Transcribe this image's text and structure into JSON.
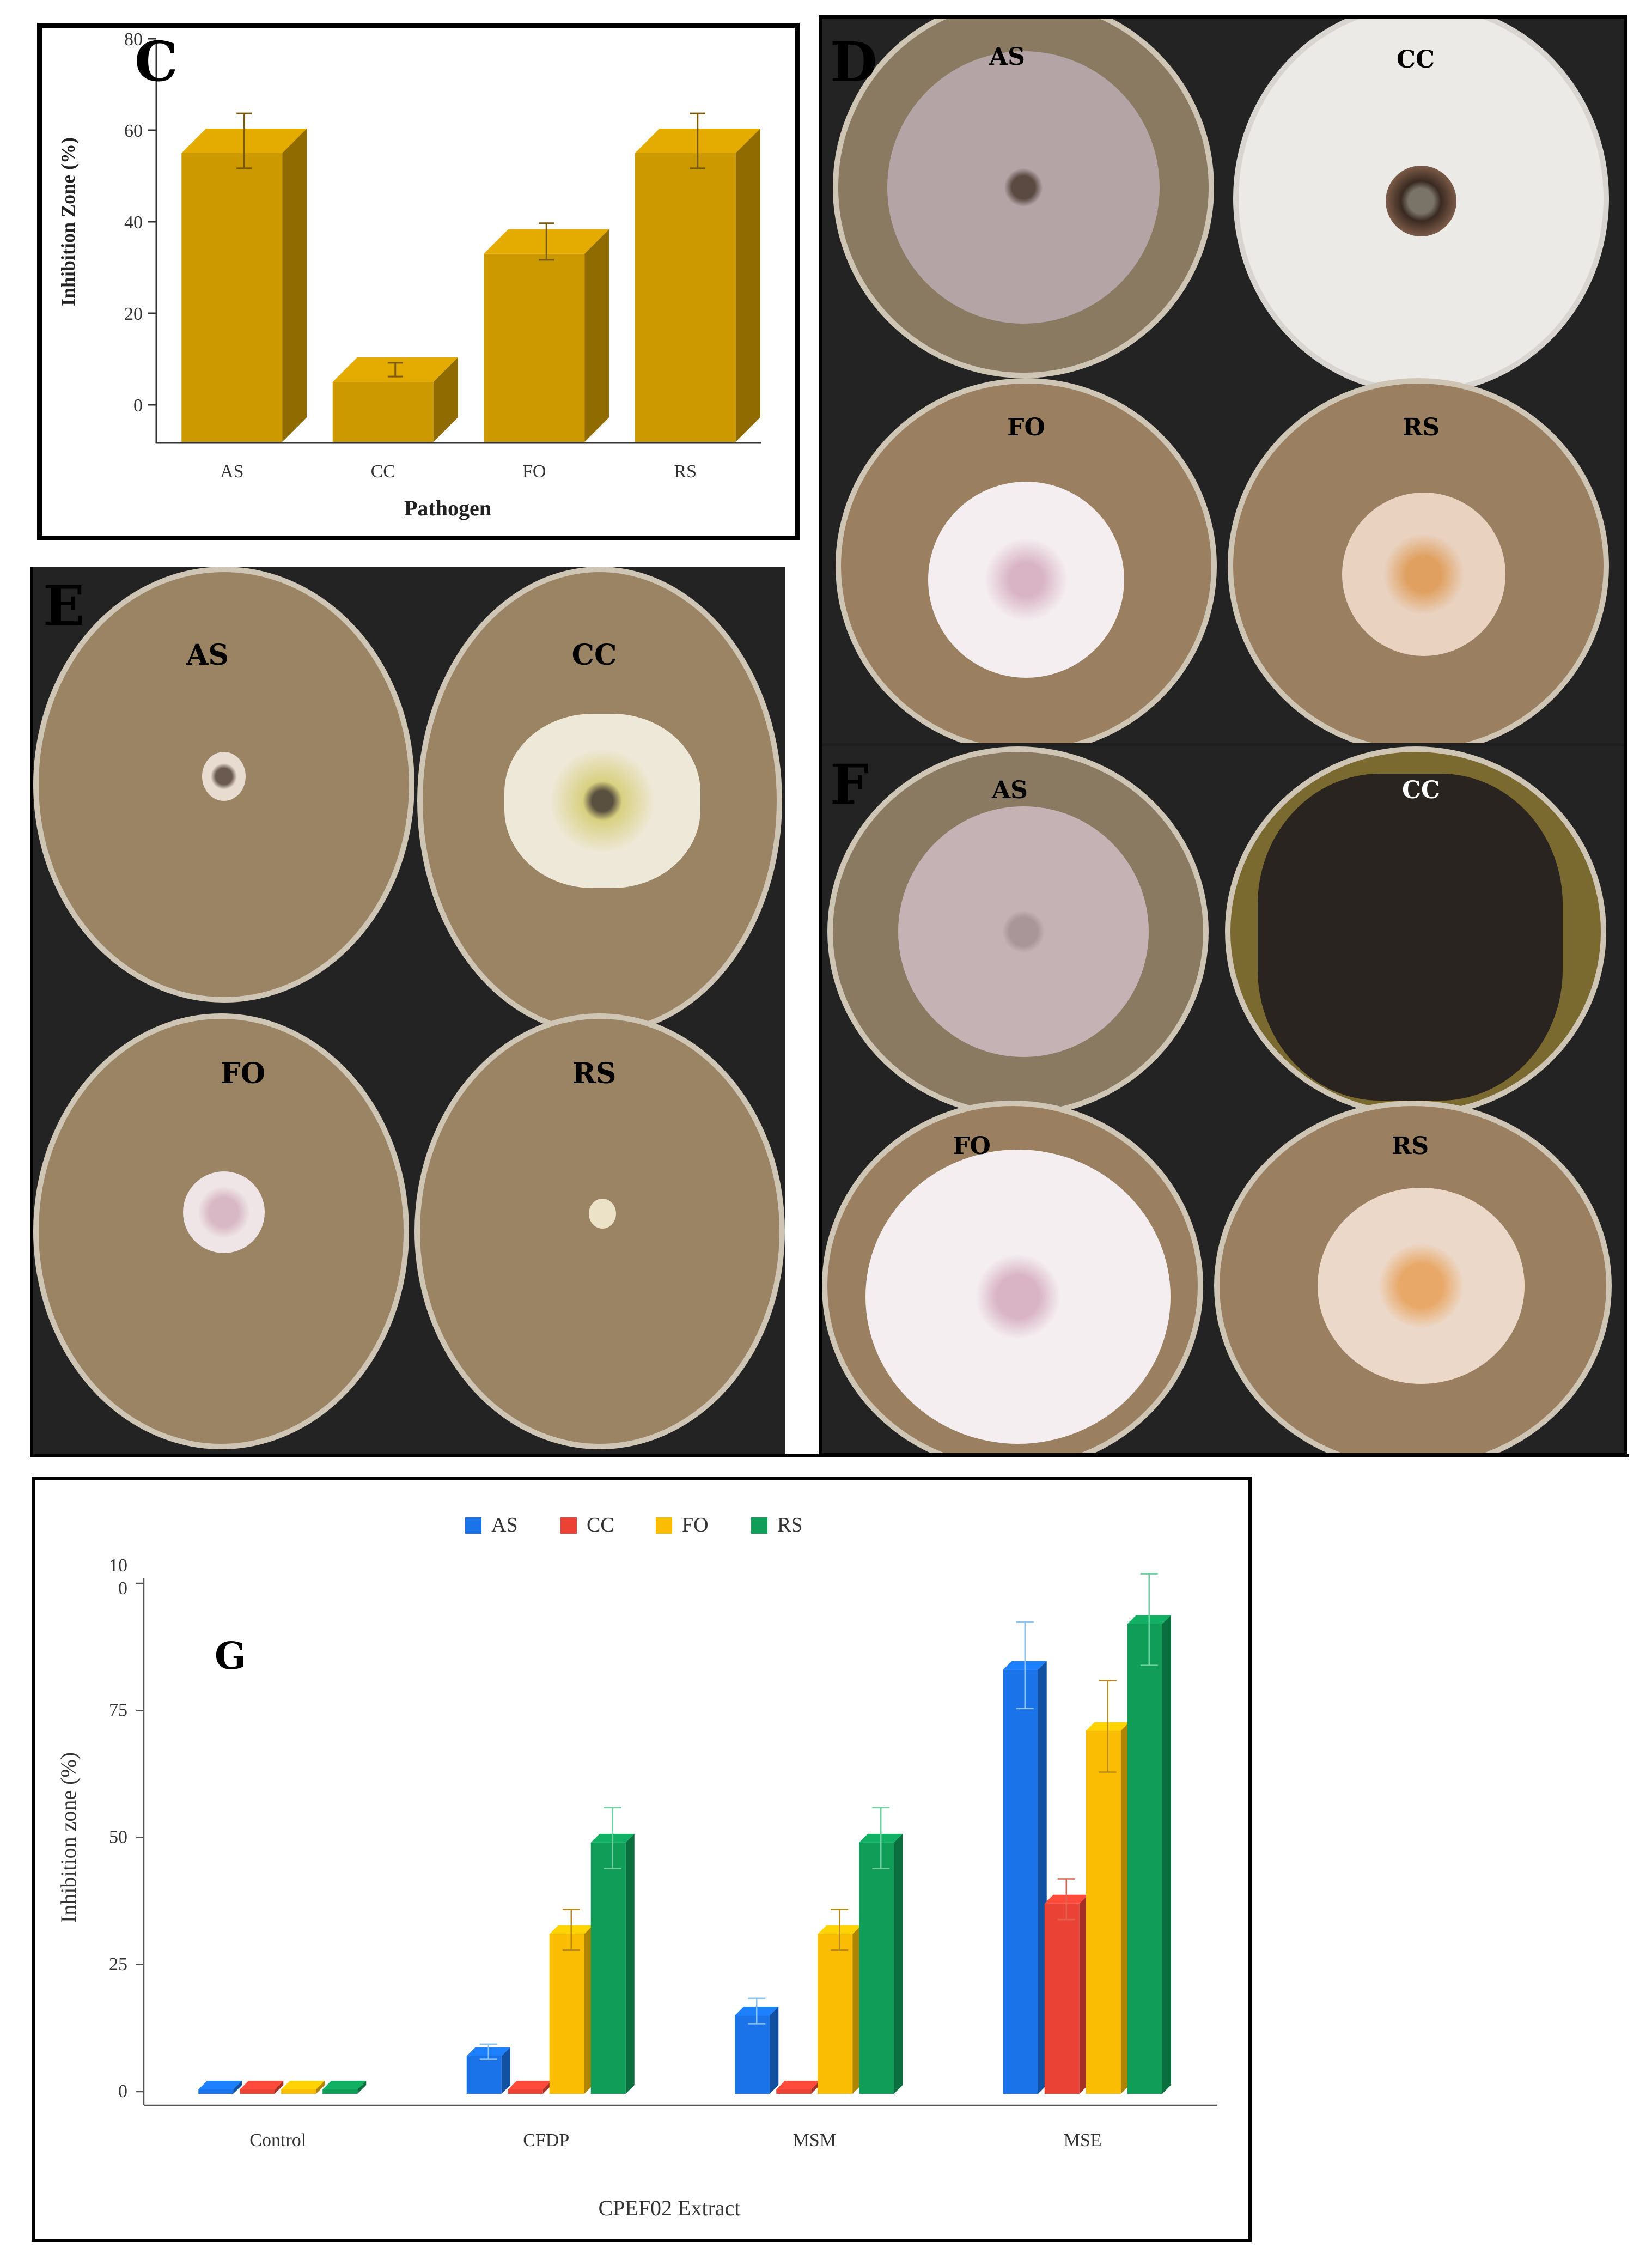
{
  "panel_c": {
    "label": "C",
    "chart_data": {
      "type": "bar",
      "categories": [
        "AS",
        "CC",
        "FO",
        "RS"
      ],
      "values": [
        55,
        5,
        33,
        55
      ],
      "errors": [
        6,
        1.5,
        4,
        6
      ],
      "title": "",
      "xlabel": "Pathogen",
      "ylabel": "Inhibition Zone (%)",
      "ylim": [
        0,
        80
      ],
      "yticks": [
        "0",
        "20",
        "40",
        "60",
        "80"
      ],
      "bar_color": "#cc9900",
      "grid": false,
      "style": "3d"
    }
  },
  "panel_d": {
    "label": "D",
    "plates": [
      "AS",
      "CC",
      "FO",
      "RS"
    ]
  },
  "panel_e": {
    "label": "E",
    "plates": [
      "AS",
      "CC",
      "FO",
      "RS"
    ]
  },
  "panel_f": {
    "label": "F",
    "plates": [
      "AS",
      "CC",
      "FO",
      "RS"
    ]
  },
  "panel_g": {
    "label": "G",
    "chart_data": {
      "type": "bar",
      "categories": [
        "Control",
        "CFDP",
        "MSM",
        "MSE"
      ],
      "series": [
        {
          "name": "AS",
          "color": "#1a73e8",
          "values": [
            0,
            7,
            15,
            83
          ],
          "errors": [
            0,
            1.5,
            2.5,
            8.5
          ]
        },
        {
          "name": "CC",
          "color": "#ea4335",
          "values": [
            0,
            0,
            0,
            37
          ],
          "errors": [
            0,
            0,
            0,
            4
          ]
        },
        {
          "name": "FO",
          "color": "#fbbc04",
          "values": [
            0,
            31,
            31,
            71
          ],
          "errors": [
            0,
            4,
            4,
            9
          ]
        },
        {
          "name": "RS",
          "color": "#0f9d58",
          "values": [
            0,
            49,
            49,
            92
          ],
          "errors": [
            0,
            6,
            6,
            9
          ]
        }
      ],
      "title": "",
      "xlabel": "CPEF02 Extract",
      "ylabel": "Inhibition zone (%)",
      "ylim": [
        0,
        100
      ],
      "ytick_labels": [
        {
          "value": 0,
          "text": "0"
        },
        {
          "value": 25,
          "text": "25"
        },
        {
          "value": 50,
          "text": "50"
        },
        {
          "value": 75,
          "text": "75"
        },
        {
          "value": 100,
          "text": "10\n0"
        }
      ],
      "legend_position": "top-center",
      "grid": false,
      "style": "3d"
    }
  }
}
